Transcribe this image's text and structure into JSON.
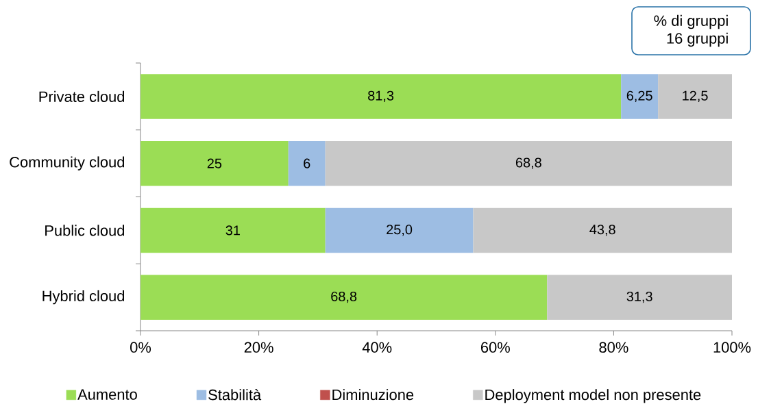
{
  "chart_data": {
    "type": "bar",
    "orientation": "horizontal",
    "stacked": true,
    "categories": [
      "Private cloud",
      "Community cloud",
      "Public cloud",
      "Hybrid cloud"
    ],
    "series": [
      {
        "name": "Aumento",
        "color": "#9bdd55",
        "values": [
          81.25,
          25,
          31.25,
          68.75
        ],
        "value_labels": [
          "81,3",
          "25",
          "31",
          "68,8"
        ]
      },
      {
        "name": "Stabilità",
        "color": "#9dbde3",
        "values": [
          6.25,
          6.25,
          25,
          null
        ],
        "value_labels": [
          "6,25",
          "6",
          "25,0",
          null
        ]
      },
      {
        "name": "Diminuzione",
        "color": "#c0504d",
        "values": [
          null,
          null,
          null,
          null
        ]
      },
      {
        "name": "Deployment model non presente",
        "color": "#c8c8c8",
        "values": [
          12.5,
          68.75,
          43.75,
          31.25
        ],
        "value_labels": [
          "12,5",
          "68,8",
          "43,8",
          "31,3"
        ]
      }
    ],
    "xlim": [
      0,
      100
    ],
    "xticks": [
      {
        "value": 0,
        "label": "0%"
      },
      {
        "value": 20,
        "label": "20%"
      },
      {
        "value": 40,
        "label": "40%"
      },
      {
        "value": 60,
        "label": "60%"
      },
      {
        "value": 80,
        "label": "80%"
      },
      {
        "value": 100,
        "label": "100%"
      }
    ],
    "grid": false,
    "legend": "bottom",
    "annotations": [
      "% di gruppi",
      "16 gruppi"
    ]
  }
}
